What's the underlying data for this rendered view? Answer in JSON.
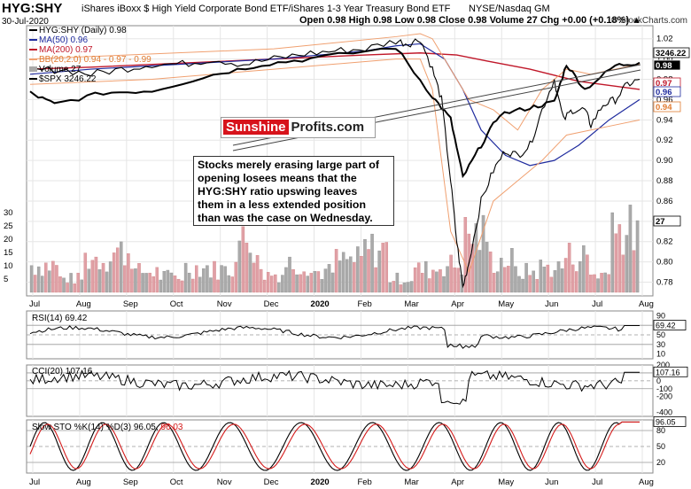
{
  "header": {
    "symbol": "HYG:SHY",
    "description": "iShares iBoxx $ High Yield Corporate Bond ETF/iShares 1-3 Year Treasury Bond ETF",
    "exchange": "NYSE/Nasdaq GM",
    "date": "30-Jul-2020",
    "ohlc_line": "Open 0.98  High 0.98  Low 0.98  Close 0.98  Volume 27  Chg +0.00 (+0.18%) ▲",
    "brand": "© StockCharts.com"
  },
  "legend": {
    "main": "HYG:SHY (Daily) 0.98",
    "ma50": "MA(50) 0.96",
    "ma200": "MA(200) 0.97",
    "bb": "BB(20,2.0) 0.94 - 0.97 - 0.99",
    "volume": "Volume 27",
    "spx": "$SPX 3246.22"
  },
  "colors": {
    "price": "#000000",
    "ma50": "#1f2b9e",
    "ma200": "#c0182a",
    "bb": "#f0a070",
    "volume_up": "#aaaaaa",
    "volume_down": "#e0a0a6",
    "spx": "#000000",
    "oversold_fill": "#8a5a52",
    "overbought_fill": "#5f8a5a",
    "stoch_d": "#d41b1b"
  },
  "watermark": {
    "red_part": "Sunshine",
    "black_part": "Profits.com"
  },
  "annotation": "Stocks merely erasing large part of\nopening losees means that the\nHYG:SHY ratio upswing leaves\nthem in a less extended position\nthan was the case on Wednesday.",
  "x_labels": [
    "Jul",
    "Aug",
    "Sep",
    "Oct",
    "Nov",
    "Dec",
    "2020",
    "Feb",
    "Mar",
    "Apr",
    "May",
    "Jun",
    "Jul",
    "Aug"
  ],
  "price_axis": [
    "1.02",
    "1.00",
    "0.98",
    "0.96",
    "0.94",
    "0.92",
    "0.90",
    "0.88",
    "0.86",
    "0.84",
    "0.82",
    "0.80",
    "0.78"
  ],
  "price_flags": [
    {
      "text": "3246.22",
      "color": "#000000",
      "bg": "#ffffff"
    },
    {
      "text": "0.98",
      "color": "#ffffff",
      "bg": "#000000"
    },
    {
      "text": "0.97",
      "color": "#c0182a",
      "bg": "#ffffff"
    },
    {
      "text": "0.96",
      "color": "#1f2b9e",
      "bg": "#ffffff"
    },
    {
      "text": "0.94",
      "color": "#e07a30",
      "bg": "#ffffff"
    },
    {
      "text": "27",
      "color": "#000000",
      "bg": "#ffffff"
    }
  ],
  "volume_axis": [
    "30",
    "25",
    "20",
    "15",
    "10",
    "5"
  ],
  "rsi": {
    "label": "RSI(14) 69.42",
    "flag": "69.42",
    "axis": [
      "90",
      "70",
      "50",
      "30",
      "10"
    ]
  },
  "cci": {
    "label": "CCI(20) 107.16",
    "flag": "107.16",
    "axis": [
      "200",
      "100",
      "0",
      "-100",
      "-200",
      "-400"
    ]
  },
  "sto": {
    "label_k": "Slow STO %K(14) %D(3) 96.05,",
    "label_d": "96.03",
    "flag": "96.05",
    "axis": [
      "80",
      "50",
      "20"
    ]
  },
  "chart_data": {
    "type": "line",
    "title": "HYG:SHY (Daily)",
    "series": [
      {
        "name": "HYG:SHY",
        "x": [
          "2019-07",
          "2019-08",
          "2019-09",
          "2019-10",
          "2019-11",
          "2019-12",
          "2020-01",
          "2020-02",
          "2020-03-01",
          "2020-03-10",
          "2020-03-23",
          "2020-04-01",
          "2020-04-10",
          "2020-05-01",
          "2020-05-15",
          "2020-06-08",
          "2020-06-26",
          "2020-07-15",
          "2020-07-30"
        ],
        "values": [
          0.99,
          0.995,
          1.0,
          1.0,
          1.005,
          1.01,
          1.015,
          1.02,
          0.985,
          0.93,
          0.775,
          0.86,
          0.92,
          0.915,
          0.905,
          0.98,
          0.945,
          0.965,
          0.98
        ]
      },
      {
        "name": "MA(50)",
        "values": [
          0.985,
          0.99,
          0.995,
          1.0,
          1.0,
          1.005,
          1.01,
          1.015,
          1.01,
          0.99,
          0.96,
          0.93,
          0.905,
          0.9,
          0.895,
          0.905,
          0.92,
          0.94,
          0.96
        ]
      },
      {
        "name": "MA(200)",
        "values": [
          0.99,
          0.992,
          0.995,
          0.998,
          1.0,
          1.002,
          1.004,
          1.006,
          1.006,
          1.004,
          0.998,
          0.99,
          0.985,
          0.98,
          0.977,
          0.975,
          0.972,
          0.97,
          0.97
        ]
      },
      {
        "name": "$SPX",
        "values": [
          2980,
          2880,
          2980,
          3000,
          3140,
          3230,
          3280,
          3380,
          2950,
          2750,
          2240,
          2520,
          2790,
          2850,
          2900,
          3230,
          3010,
          3220,
          3246.22
        ]
      }
    ],
    "volume": [
      12,
      6,
      15,
      18,
      9,
      7,
      11,
      10,
      22,
      8,
      13,
      9,
      14,
      19,
      6,
      10,
      12,
      25,
      14,
      9,
      11,
      16,
      8,
      27
    ],
    "rsi_last": 69.42,
    "cci_last": 107.16,
    "sto_k_last": 96.05,
    "sto_d_last": 96.03,
    "ylim": [
      0.77,
      1.025
    ]
  }
}
